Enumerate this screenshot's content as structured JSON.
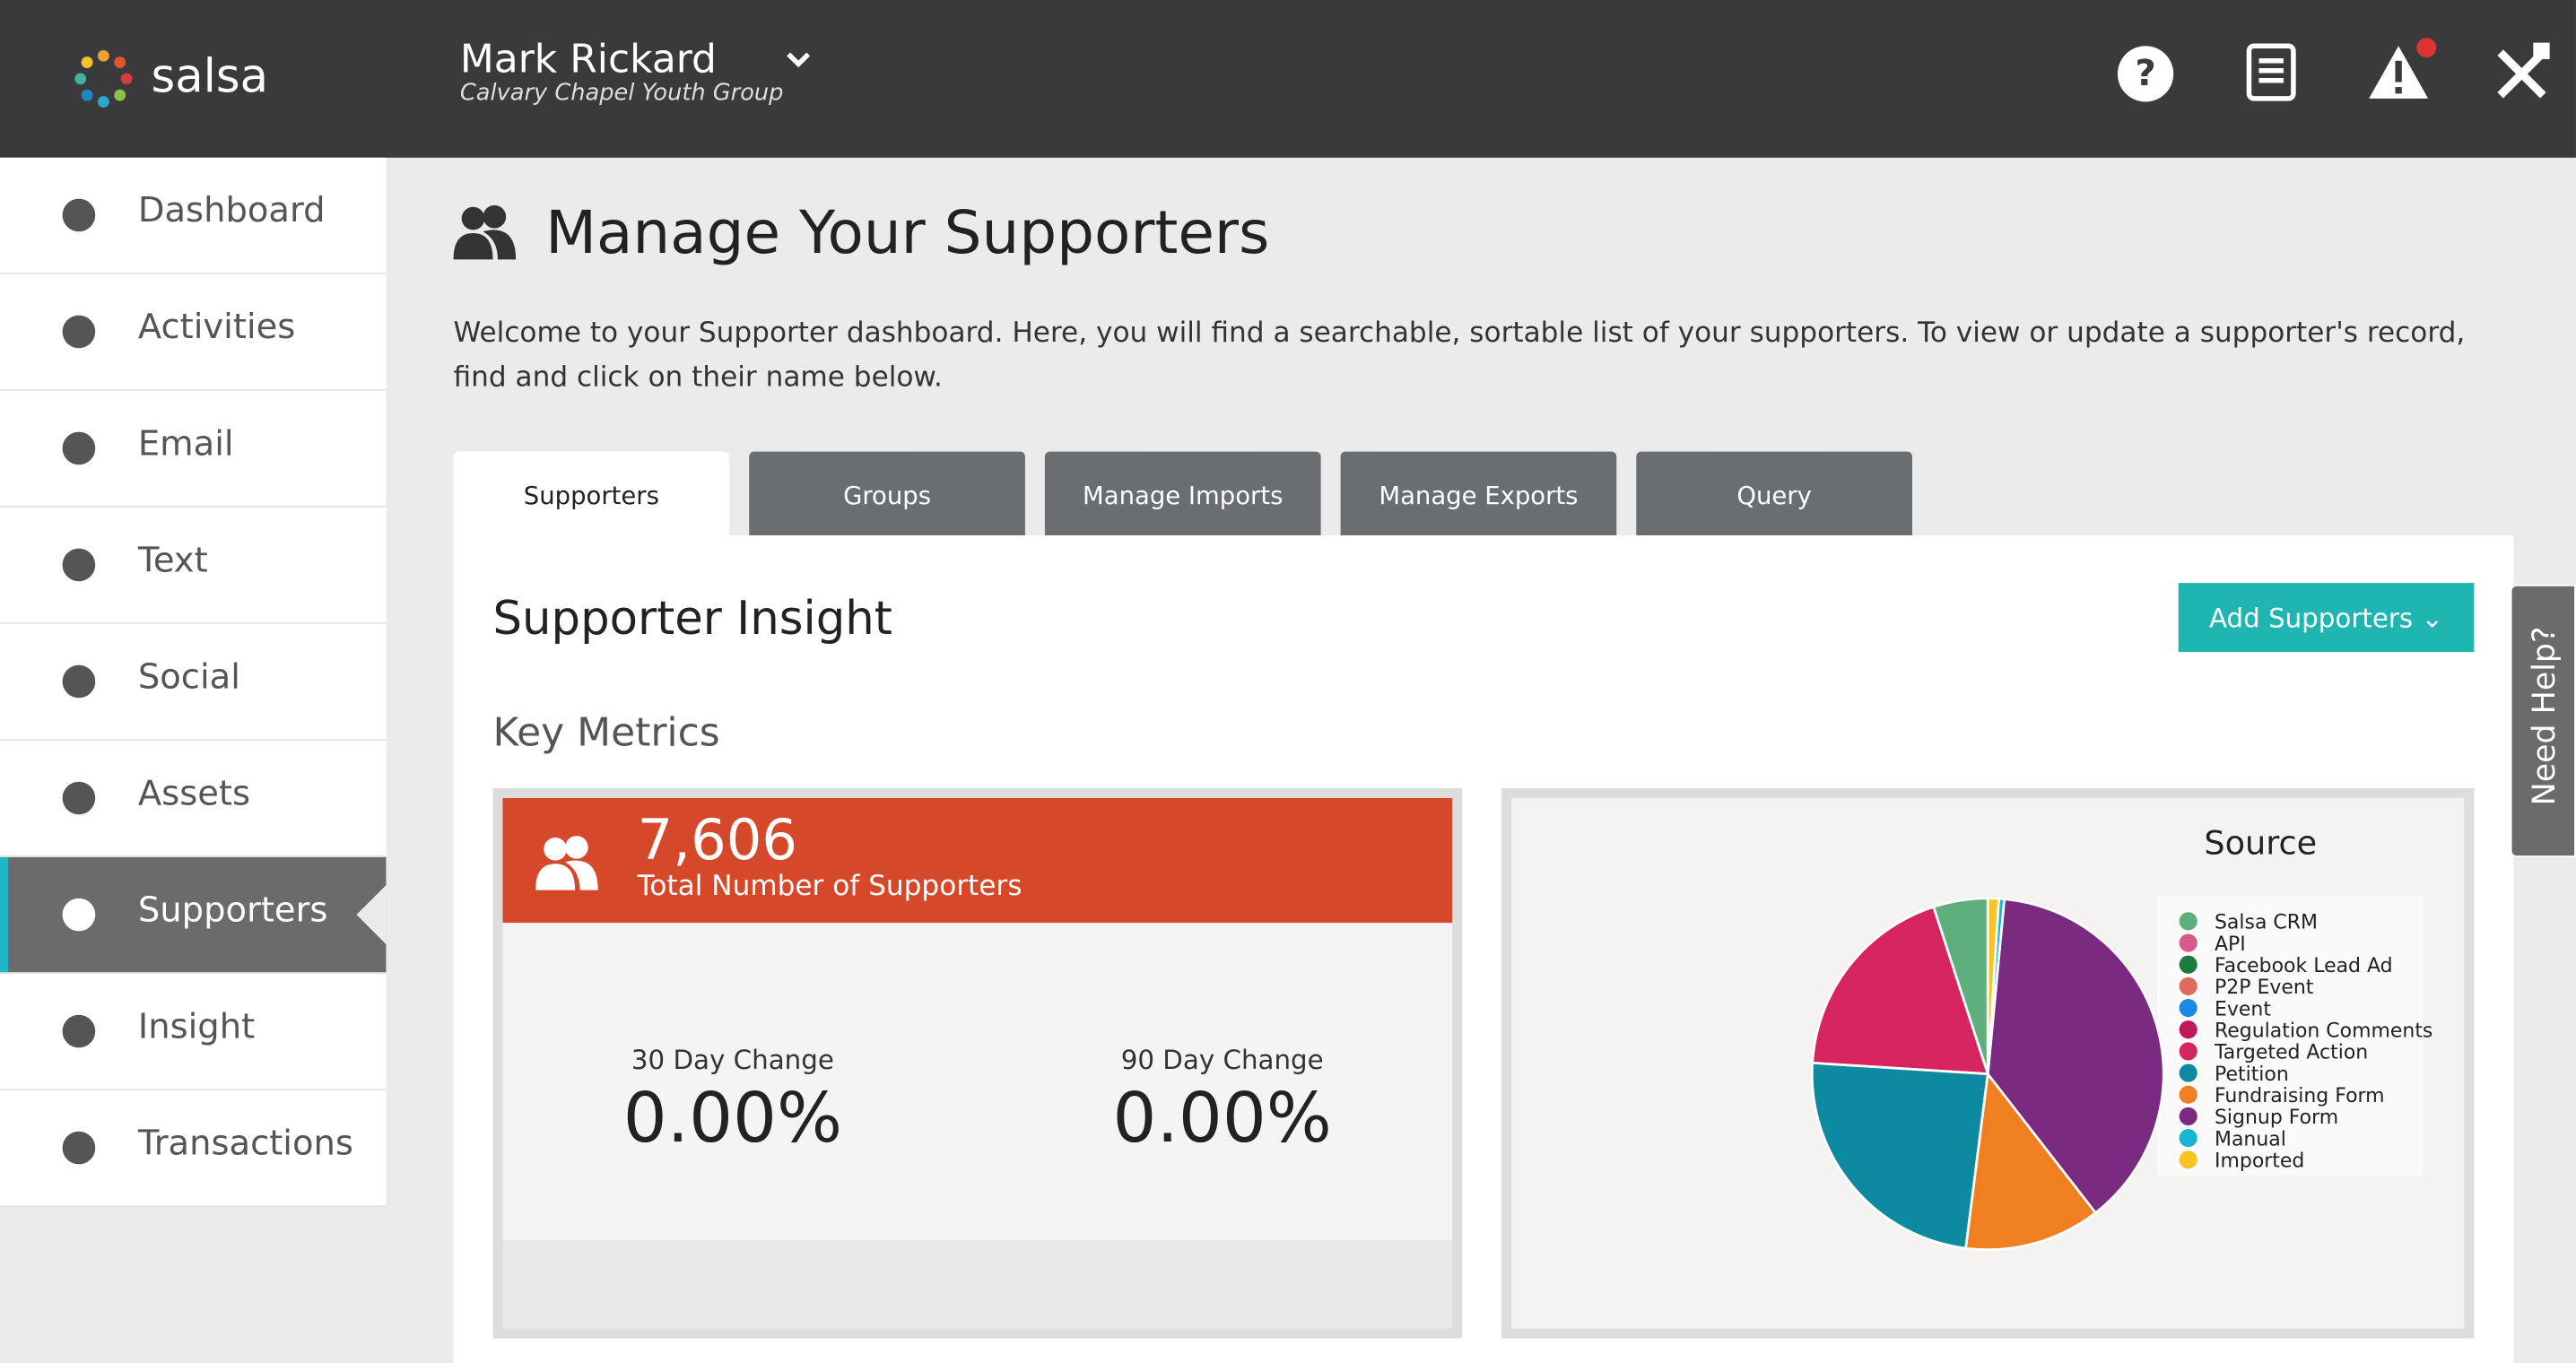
{
  "header": {
    "logo": "salsa",
    "user_name": "Mark Rickard",
    "organization": "Calvary Chapel Youth Group"
  },
  "nav": [
    "Dashboard",
    "Activities",
    "Email",
    "Text",
    "Social",
    "Assets",
    "Supporters",
    "Insight",
    "Transactions"
  ],
  "page": {
    "title": "Manage Your Supporters",
    "description": "Welcome to your Supporter dashboard. Here, you will find a searchable, sortable list of your supporters. To view or update a supporter's record, find and click on their name below.",
    "tabs": [
      "Supporters",
      "Groups",
      "Manage Imports",
      "Manage Exports",
      "Query"
    ],
    "section_title": "Supporter Insight",
    "add_button": "Add Supporters",
    "metrics_title": "Key Metrics",
    "total": {
      "value": "7,606",
      "label": "Total Number of Supporters"
    },
    "changes": [
      {
        "label": "30 Day Change",
        "value": "0.00%"
      },
      {
        "label": "90 Day Change",
        "value": "0.00%"
      }
    ],
    "help_tab": "Need Help?"
  },
  "chart_data": {
    "type": "pie",
    "title": "Source",
    "categories": [
      "Salsa CRM",
      "API",
      "Facebook Lead Ad",
      "P2P Event",
      "Event",
      "Regulation Comments",
      "Targeted Action",
      "Petition",
      "Fundraising Form",
      "Signup Form",
      "Manual",
      "Imported"
    ],
    "values": [
      5,
      0,
      0,
      0,
      0,
      0,
      19,
      24,
      12.5,
      38,
      0.5,
      1
    ],
    "colors": [
      "#5fae7d",
      "#d65a8c",
      "#1e7a3c",
      "#e06a5e",
      "#1e88e5",
      "#c2185b",
      "#d6245f",
      "#0e8aa0",
      "#f07f22",
      "#7b2a82",
      "#18b7cf",
      "#f7c325"
    ]
  }
}
